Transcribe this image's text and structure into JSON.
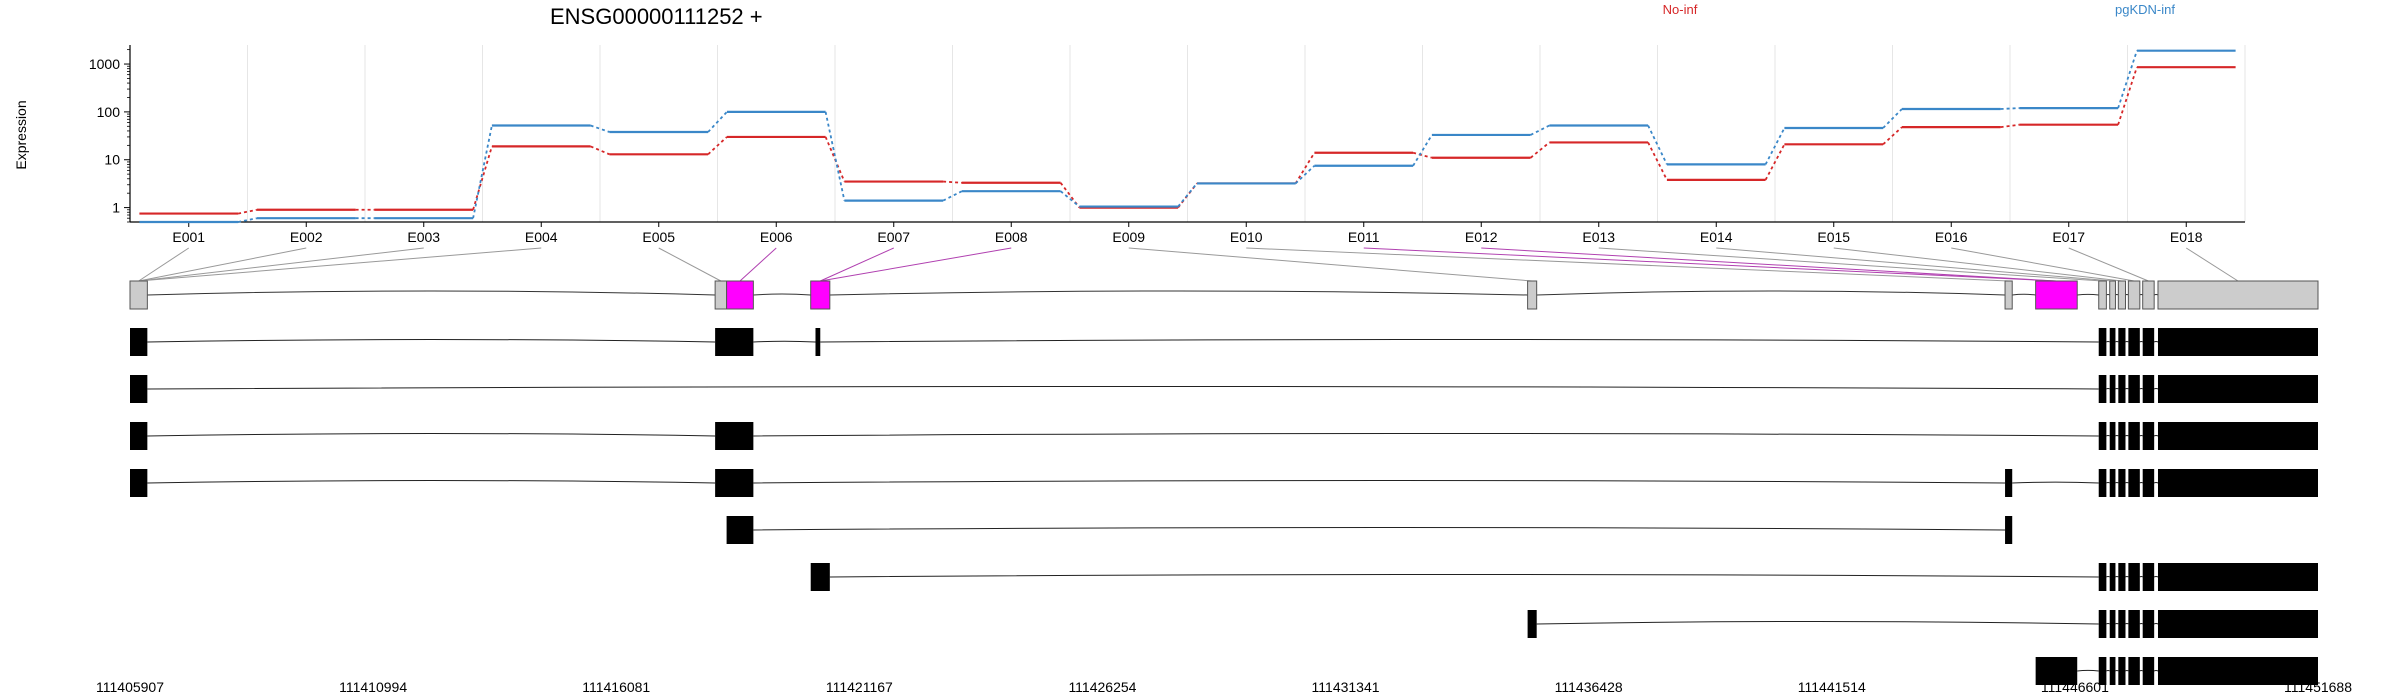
{
  "chart_data": {
    "type": "line",
    "title": "ENSG00000111252 +",
    "ylabel": "Expression",
    "yscale": "log",
    "ylim": [
      0.5,
      2500
    ],
    "yticks": [
      "1",
      "10",
      "100",
      "1000"
    ],
    "grid": true,
    "legend_placement": "top",
    "categories": [
      "E001",
      "E002",
      "E003",
      "E004",
      "E005",
      "E006",
      "E007",
      "E008",
      "E009",
      "E010",
      "E011",
      "E012",
      "E013",
      "E014",
      "E015",
      "E016",
      "E017",
      "E018"
    ],
    "series": [
      {
        "name": "No-inf",
        "color": "#d62728",
        "values": [
          0.75,
          0.9,
          0.9,
          19,
          13,
          30,
          3.5,
          3.3,
          1.0,
          3.2,
          14,
          11,
          23,
          3.8,
          21,
          48,
          54,
          860
        ]
      },
      {
        "name": "pgKDN-inf",
        "color": "#3a87c8",
        "values": [
          0.5,
          0.6,
          0.6,
          52,
          38,
          100,
          1.4,
          2.2,
          1.05,
          3.2,
          7.5,
          33,
          52,
          8,
          46,
          115,
          120,
          1900
        ]
      }
    ],
    "coordinates": [
      "111405907",
      "111410994",
      "111416081",
      "111421167",
      "111426254",
      "111431341",
      "111436428",
      "111441514",
      "111446601",
      "111451688"
    ],
    "gene_model": {
      "genomic_range": [
        111405907,
        111451688
      ],
      "exons": [
        {
          "start": 111405907,
          "end": 111406270,
          "highlight": false
        },
        {
          "start": 111418150,
          "end": 111418390,
          "highlight": false
        },
        {
          "start": 111418390,
          "end": 111418950,
          "highlight": true
        },
        {
          "start": 111420150,
          "end": 111420550,
          "highlight": true
        },
        {
          "start": 111435150,
          "end": 111435340,
          "highlight": false
        },
        {
          "start": 111445140,
          "end": 111445290,
          "highlight": false
        },
        {
          "start": 111445780,
          "end": 111446650,
          "highlight": true
        },
        {
          "start": 111447100,
          "end": 111447260,
          "highlight": false
        },
        {
          "start": 111447330,
          "end": 111447450,
          "highlight": false
        },
        {
          "start": 111447510,
          "end": 111447660,
          "highlight": false
        },
        {
          "start": 111447720,
          "end": 111447960,
          "highlight": false
        },
        {
          "start": 111448020,
          "end": 111448260,
          "highlight": false
        },
        {
          "start": 111448340,
          "end": 111451688,
          "highlight": false
        }
      ],
      "transcripts": [
        [
          [
            111405907,
            111406270
          ],
          [
            111418150,
            111418950
          ],
          [
            111420250,
            111420350
          ],
          [
            111447100,
            111447260
          ],
          [
            111447330,
            111447450
          ],
          [
            111447510,
            111447660
          ],
          [
            111447720,
            111447960
          ],
          [
            111448020,
            111448260
          ],
          [
            111448340,
            111451688
          ]
        ],
        [
          [
            111405907,
            111406270
          ],
          [
            111447100,
            111447260
          ],
          [
            111447330,
            111447450
          ],
          [
            111447510,
            111447660
          ],
          [
            111447720,
            111447960
          ],
          [
            111448020,
            111448260
          ],
          [
            111448340,
            111451688
          ]
        ],
        [
          [
            111405907,
            111406270
          ],
          [
            111418150,
            111418950
          ],
          [
            111447100,
            111447260
          ],
          [
            111447330,
            111447450
          ],
          [
            111447510,
            111447660
          ],
          [
            111447720,
            111447960
          ],
          [
            111448020,
            111448260
          ],
          [
            111448340,
            111451688
          ]
        ],
        [
          [
            111405907,
            111406270
          ],
          [
            111418150,
            111418950
          ],
          [
            111445140,
            111445290
          ],
          [
            111447100,
            111447260
          ],
          [
            111447330,
            111447450
          ],
          [
            111447510,
            111447660
          ],
          [
            111447720,
            111447960
          ],
          [
            111448020,
            111448260
          ],
          [
            111448340,
            111451688
          ]
        ],
        [
          [
            111418390,
            111418950
          ],
          [
            111445140,
            111445290
          ]
        ],
        [
          [
            111420150,
            111420550
          ],
          [
            111447100,
            111447260
          ],
          [
            111447330,
            111447450
          ],
          [
            111447510,
            111447660
          ],
          [
            111447720,
            111447960
          ],
          [
            111448020,
            111448260
          ],
          [
            111448340,
            111451688
          ]
        ],
        [
          [
            111435150,
            111435340
          ],
          [
            111447100,
            111447260
          ],
          [
            111447330,
            111447450
          ],
          [
            111447510,
            111447660
          ],
          [
            111447720,
            111447960
          ],
          [
            111448020,
            111448260
          ],
          [
            111448340,
            111451688
          ]
        ],
        [
          [
            111445780,
            111446650
          ],
          [
            111447100,
            111447260
          ],
          [
            111447330,
            111447450
          ],
          [
            111447510,
            111447660
          ],
          [
            111447720,
            111447960
          ],
          [
            111448020,
            111448260
          ],
          [
            111448340,
            111451688
          ]
        ]
      ]
    }
  }
}
